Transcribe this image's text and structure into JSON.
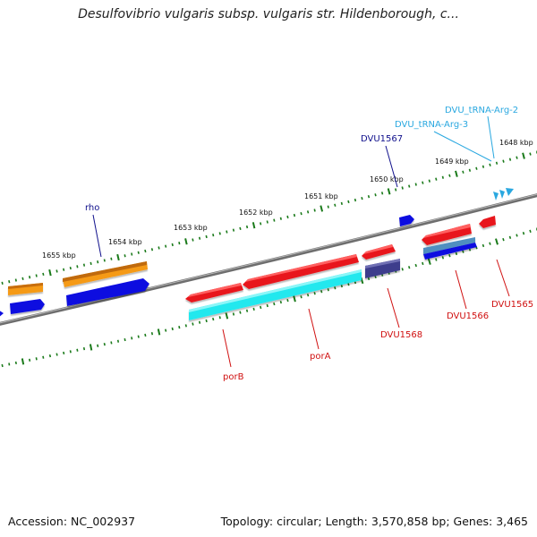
{
  "title": "Desulfovibrio vulgaris subsp. vulgaris str. Hildenborough, c...",
  "footer": {
    "accession": "Accession: NC_002937",
    "summary": "Topology: circular; Length: 3,570,858 bp; Genes: 3,465"
  },
  "colors": {
    "red": "#e8141a",
    "blue": "#1010e0",
    "orange": "#f59a16",
    "cyan": "#22e8ee",
    "navy": "#3c3c8c",
    "steel": "#4f8fc0",
    "tick": "#1a7a1a",
    "backbone": "#707070",
    "label_red": "#d01010",
    "label_blue": "#10108c",
    "label_cyan": "#2aa8e0"
  },
  "kbp_ticks": [
    "1648 kbp",
    "1649 kbp",
    "1650 kbp",
    "1651 kbp",
    "1652 kbp",
    "1653 kbp",
    "1654 kbp",
    "1655 kbp"
  ],
  "gene_labels": {
    "rho": "rho",
    "dvu1567": "DVU1567",
    "trna_arg2": "DVU_tRNA-Arg-2",
    "trna_arg3": "DVU_tRNA-Arg-3",
    "porb": "porB",
    "pora": "porA",
    "dvu1568": "DVU1568",
    "dvu1566": "DVU1566",
    "dvu1565": "DVU1565"
  }
}
